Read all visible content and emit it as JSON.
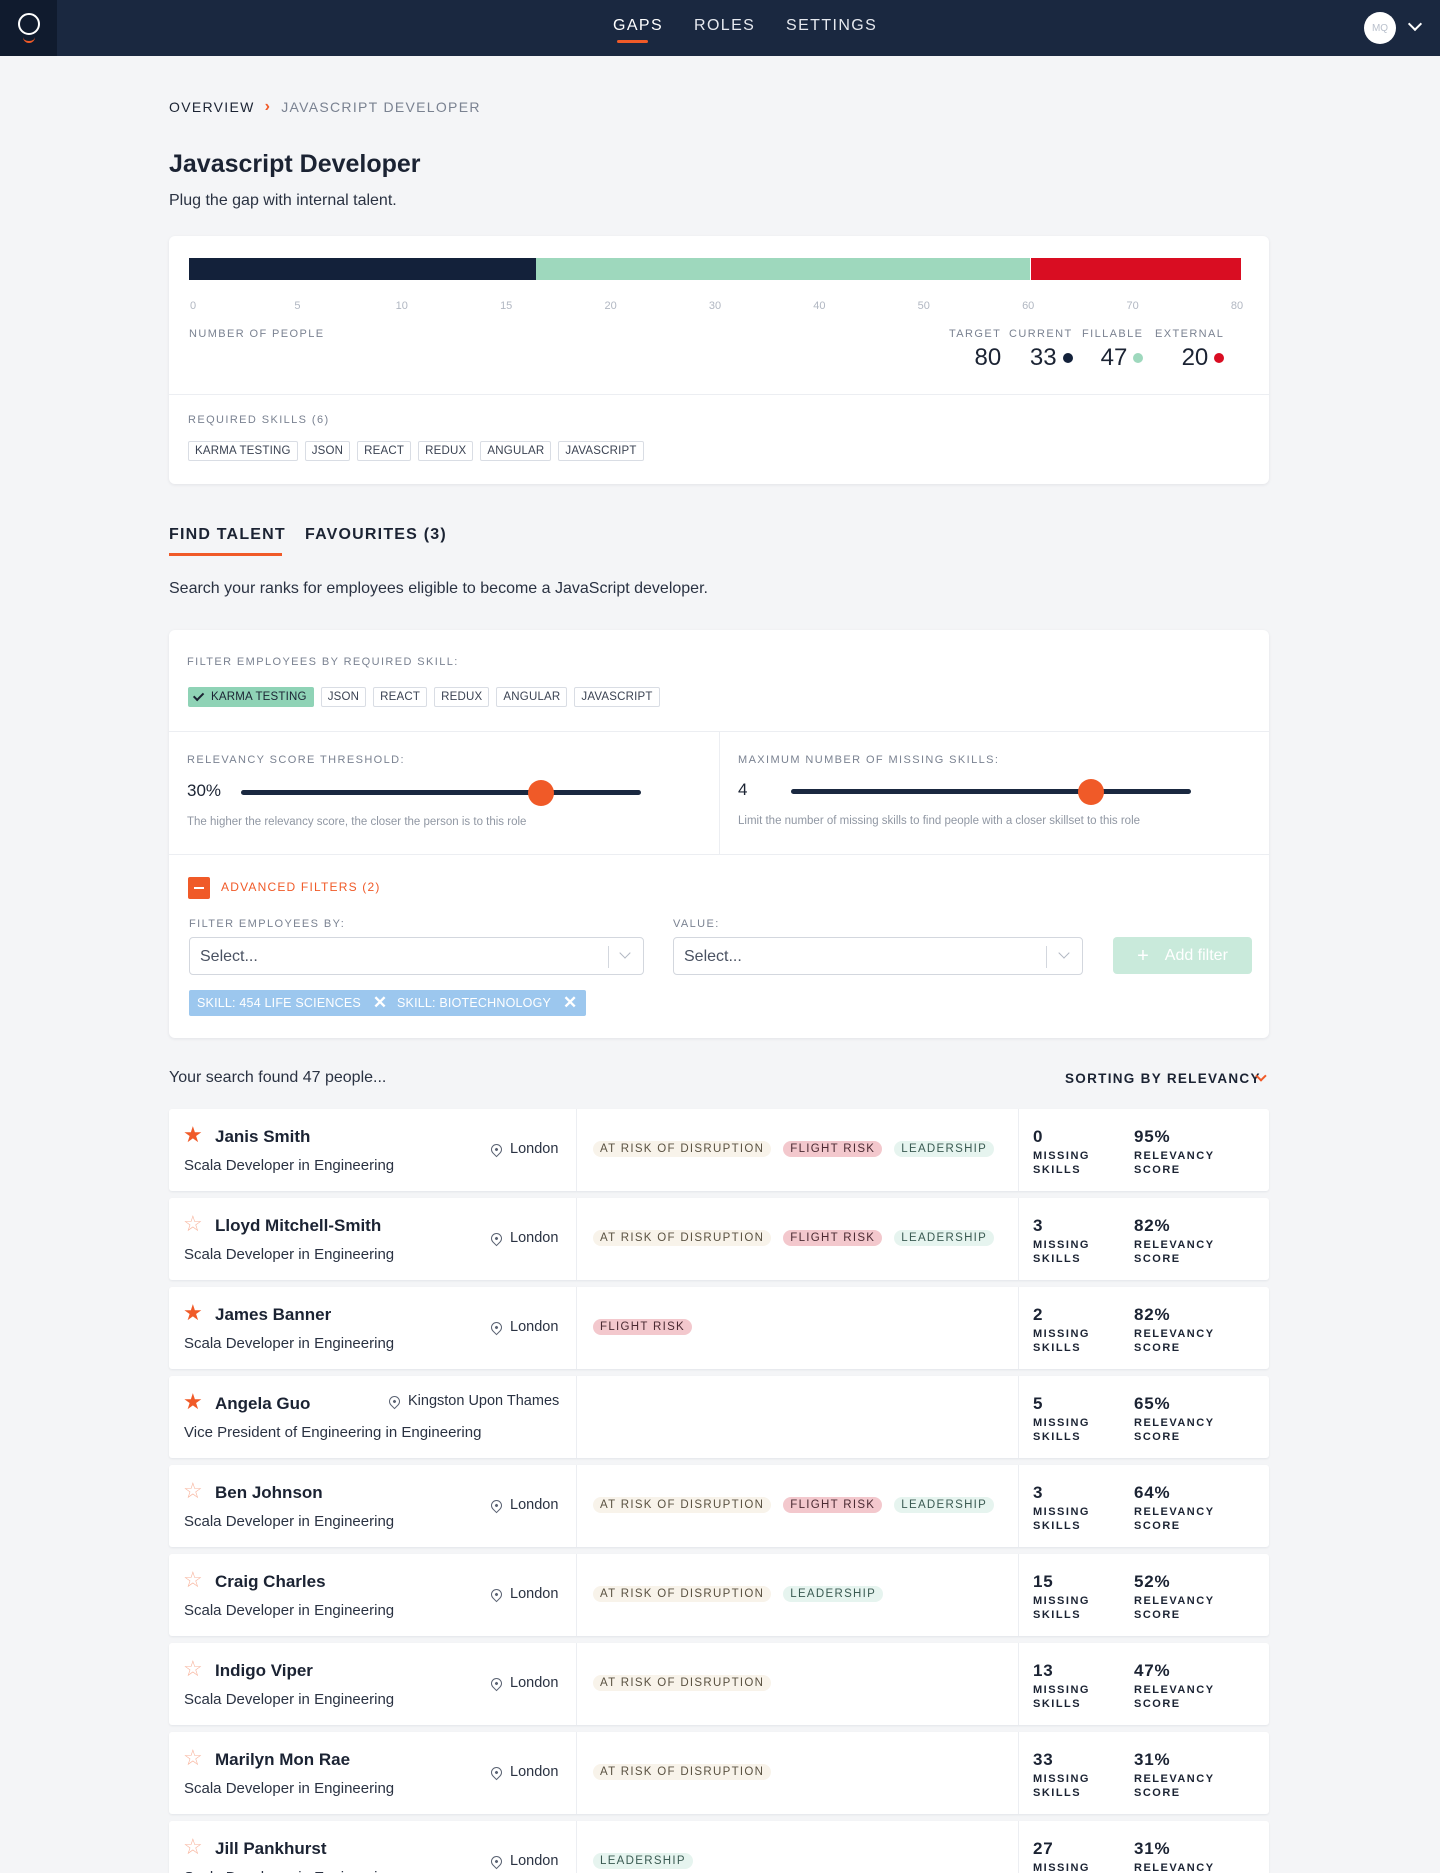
{
  "nav": {
    "items": [
      {
        "label": "GAPS",
        "active": true
      },
      {
        "label": "ROLES",
        "active": false
      },
      {
        "label": "SETTINGS",
        "active": false
      }
    ],
    "avatar_initials": "MQ"
  },
  "breadcrumb": {
    "root": "OVERVIEW",
    "current": "JAVASCRIPT DEVELOPER"
  },
  "page": {
    "title": "Javascript Developer",
    "subtitle": "Plug the gap with internal talent."
  },
  "gap_chart": {
    "axis_ticks": [
      "0",
      "5",
      "10",
      "15",
      "20",
      "30",
      "40",
      "50",
      "60",
      "70",
      "80"
    ],
    "segments": [
      {
        "name": "current",
        "value": 33,
        "color": "#13213a"
      },
      {
        "name": "fillable",
        "value": 47,
        "color": "#9ed8bd"
      },
      {
        "name": "external",
        "value": 20,
        "color": "#d90d22"
      }
    ],
    "number_label": "NUMBER OF PEOPLE",
    "stats": [
      {
        "label": "TARGET",
        "value": "80",
        "color": ""
      },
      {
        "label": "CURRENT",
        "value": "33",
        "color": "#13213a"
      },
      {
        "label": "FILLABLE",
        "value": "47",
        "color": "#9ed8bd"
      },
      {
        "label": "EXTERNAL",
        "value": "20",
        "color": "#d90d22"
      }
    ],
    "required_label": "REQUIRED SKILLS (6)",
    "required_skills": [
      "KARMA TESTING",
      "JSON",
      "REACT",
      "REDUX",
      "ANGULAR",
      "JAVASCRIPT"
    ]
  },
  "tabs": [
    {
      "label": "FIND TALENT",
      "active": true
    },
    {
      "label": "FAVOURITES (3)",
      "active": false
    }
  ],
  "tab_description": "Search your ranks for employees eligible to become a JavaScript developer.",
  "filters": {
    "skill_label": "FILTER EMPLOYEES BY REQUIRED SKILL:",
    "skills": [
      {
        "label": "KARMA TESTING",
        "checked": true
      },
      {
        "label": "JSON",
        "checked": false
      },
      {
        "label": "REACT",
        "checked": false
      },
      {
        "label": "REDUX",
        "checked": false
      },
      {
        "label": "ANGULAR",
        "checked": false
      },
      {
        "label": "JAVASCRIPT",
        "checked": false
      }
    ],
    "relevancy": {
      "label": "RELEVANCY SCORE THRESHOLD:",
      "value": "30%",
      "level": 0.75,
      "help": "The higher the relevancy score, the closer the person is to this role"
    },
    "missing": {
      "label": "MAXIMUM NUMBER OF MISSING SKILLS:",
      "value": "4",
      "level": 0.75,
      "help": "Limit the number of missing skills to find people with a closer skillset to this role"
    },
    "advanced_label": "ADVANCED FILTERS (2)",
    "filter_by_label": "FILTER EMPLOYEES BY:",
    "filter_by_placeholder": "Select...",
    "value_label": "VALUE:",
    "value_placeholder": "Select...",
    "add_filter_label": "Add filter",
    "chips": [
      "SKILL: 454 LIFE SCIENCES",
      "SKILL: BIOTECHNOLOGY"
    ]
  },
  "results": {
    "found_text": "Your search found 47 people...",
    "sort_label": "SORTING BY RELEVANCY",
    "missing_label_1": "MISSING",
    "missing_label_2": "SKILLS",
    "relevancy_label_1": "RELEVANCY",
    "relevancy_label_2": "SCORE",
    "rows": [
      {
        "name": "Janis Smith",
        "role": "Scala Developer in Engineering",
        "location": "London",
        "favourite": true,
        "badges": [
          "AT RISK OF DISRUPTION",
          "FLIGHT RISK",
          "LEADERSHIP"
        ],
        "missing": "0",
        "relevancy": "95%"
      },
      {
        "name": "Lloyd Mitchell-Smith",
        "role": "Scala Developer in Engineering",
        "location": "London",
        "favourite": false,
        "badges": [
          "AT RISK OF DISRUPTION",
          "FLIGHT RISK",
          "LEADERSHIP"
        ],
        "missing": "3",
        "relevancy": "82%"
      },
      {
        "name": "James Banner",
        "role": "Scala Developer in Engineering",
        "location": "London",
        "favourite": true,
        "badges": [
          "FLIGHT RISK"
        ],
        "missing": "2",
        "relevancy": "82%"
      },
      {
        "name": "Angela Guo",
        "role": "Vice President of Engineering in Engineering",
        "location": "Kingston Upon Thames",
        "favourite": true,
        "badges": [],
        "missing": "5",
        "relevancy": "65%"
      },
      {
        "name": "Ben Johnson",
        "role": "Scala Developer in Engineering",
        "location": "London",
        "favourite": false,
        "badges": [
          "AT RISK OF DISRUPTION",
          "FLIGHT RISK",
          "LEADERSHIP"
        ],
        "missing": "3",
        "relevancy": "64%"
      },
      {
        "name": "Craig Charles",
        "role": "Scala Developer in Engineering",
        "location": "London",
        "favourite": false,
        "badges": [
          "AT RISK OF DISRUPTION",
          "LEADERSHIP"
        ],
        "missing": "15",
        "relevancy": "52%"
      },
      {
        "name": "Indigo Viper",
        "role": "Scala Developer in Engineering",
        "location": "London",
        "favourite": false,
        "badges": [
          "AT RISK OF DISRUPTION"
        ],
        "missing": "13",
        "relevancy": "47%"
      },
      {
        "name": "Marilyn Mon Rae",
        "role": "Scala Developer in Engineering",
        "location": "London",
        "favourite": false,
        "badges": [
          "AT RISK OF DISRUPTION"
        ],
        "missing": "33",
        "relevancy": "31%"
      },
      {
        "name": "Jill Pankhurst",
        "role": "Scala Developer in Engineering",
        "location": "London",
        "favourite": false,
        "badges": [
          "LEADERSHIP"
        ],
        "missing": "27",
        "relevancy": "31%"
      }
    ]
  },
  "colors": {
    "accent": "#f05a28",
    "nav": "#1a2840",
    "current": "#13213a",
    "fillable": "#9ed8bd",
    "external": "#d90d22"
  }
}
